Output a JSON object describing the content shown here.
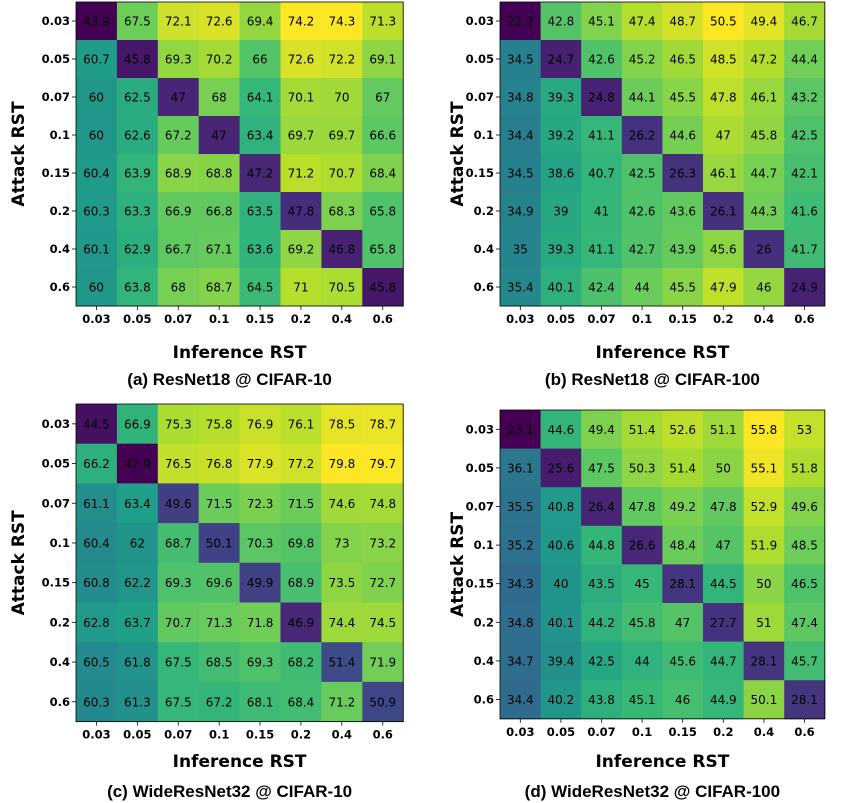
{
  "chart_data": [
    {
      "type": "heatmap",
      "caption": "(a) ResNet18 @ CIFAR-10",
      "xlabel": "Inference RST",
      "ylabel": "Attack RST",
      "x_categories": [
        "0.03",
        "0.05",
        "0.07",
        "0.1",
        "0.15",
        "0.2",
        "0.4",
        "0.6"
      ],
      "y_categories": [
        "0.03",
        "0.05",
        "0.07",
        "0.1",
        "0.15",
        "0.2",
        "0.4",
        "0.6"
      ],
      "colormap": "viridis",
      "values": [
        [
          43.9,
          67.5,
          72.1,
          72.6,
          69.4,
          74.2,
          74.3,
          71.3
        ],
        [
          60.7,
          45.8,
          69.3,
          70.2,
          66.0,
          72.6,
          72.2,
          69.1
        ],
        [
          60.0,
          62.5,
          47.0,
          68.0,
          64.1,
          70.1,
          70.0,
          67.0
        ],
        [
          60.0,
          62.6,
          67.2,
          47.0,
          63.4,
          69.7,
          69.7,
          66.6
        ],
        [
          60.4,
          63.9,
          68.9,
          68.8,
          47.2,
          71.2,
          70.7,
          68.4
        ],
        [
          60.3,
          63.3,
          66.9,
          66.8,
          63.5,
          47.8,
          68.3,
          65.8
        ],
        [
          60.1,
          62.9,
          66.7,
          67.1,
          63.6,
          69.2,
          46.8,
          65.8
        ],
        [
          60.0,
          63.8,
          68.0,
          68.7,
          64.5,
          71.0,
          70.5,
          45.8
        ]
      ]
    },
    {
      "type": "heatmap",
      "caption": "(b) ResNet18 @ CIFAR-100",
      "xlabel": "Inference RST",
      "ylabel": "Attack RST",
      "x_categories": [
        "0.03",
        "0.05",
        "0.07",
        "0.1",
        "0.15",
        "0.2",
        "0.4",
        "0.6"
      ],
      "y_categories": [
        "0.03",
        "0.05",
        "0.07",
        "0.1",
        "0.15",
        "0.2",
        "0.4",
        "0.6"
      ],
      "colormap": "viridis",
      "values": [
        [
          22.2,
          42.8,
          45.1,
          47.4,
          48.7,
          50.5,
          49.4,
          46.7
        ],
        [
          34.5,
          24.7,
          42.6,
          45.2,
          46.5,
          48.5,
          47.2,
          44.4
        ],
        [
          34.8,
          39.3,
          24.8,
          44.1,
          45.5,
          47.8,
          46.1,
          43.2
        ],
        [
          34.4,
          39.2,
          41.1,
          26.2,
          44.6,
          47.0,
          45.8,
          42.5
        ],
        [
          34.5,
          38.6,
          40.7,
          42.5,
          26.3,
          46.1,
          44.7,
          42.1
        ],
        [
          34.9,
          39.0,
          41.0,
          42.6,
          43.6,
          26.1,
          44.3,
          41.6
        ],
        [
          35.0,
          39.3,
          41.1,
          42.7,
          43.9,
          45.6,
          26.0,
          41.7
        ],
        [
          35.4,
          40.1,
          42.4,
          44.0,
          45.5,
          47.9,
          46.0,
          24.9
        ]
      ]
    },
    {
      "type": "heatmap",
      "caption": "(c) WideResNet32 @ CIFAR-10",
      "xlabel": "Inference RST",
      "ylabel": "Attack RST",
      "x_categories": [
        "0.03",
        "0.05",
        "0.07",
        "0.1",
        "0.15",
        "0.2",
        "0.4",
        "0.6"
      ],
      "y_categories": [
        "0.03",
        "0.05",
        "0.07",
        "0.1",
        "0.15",
        "0.2",
        "0.4",
        "0.6"
      ],
      "colormap": "viridis",
      "values": [
        [
          44.5,
          66.9,
          75.3,
          75.8,
          76.9,
          76.1,
          78.5,
          78.7
        ],
        [
          66.2,
          42.9,
          76.5,
          76.8,
          77.9,
          77.2,
          79.8,
          79.7
        ],
        [
          61.1,
          63.4,
          49.6,
          71.5,
          72.3,
          71.5,
          74.6,
          74.8
        ],
        [
          60.4,
          62.0,
          68.7,
          50.1,
          70.3,
          69.8,
          73.0,
          73.2
        ],
        [
          60.8,
          62.2,
          69.3,
          69.6,
          49.9,
          68.9,
          73.5,
          72.7
        ],
        [
          62.8,
          63.7,
          70.7,
          71.3,
          71.8,
          46.9,
          74.4,
          74.5
        ],
        [
          60.5,
          61.8,
          67.5,
          68.5,
          69.3,
          68.2,
          51.4,
          71.9
        ],
        [
          60.3,
          61.3,
          67.5,
          67.2,
          68.1,
          68.4,
          71.2,
          50.9
        ]
      ]
    },
    {
      "type": "heatmap",
      "caption": "(d) WideResNet32 @ CIFAR-100",
      "xlabel": "Inference RST",
      "ylabel": "Attack RST",
      "x_categories": [
        "0.03",
        "0.05",
        "0.07",
        "0.1",
        "0.15",
        "0.2",
        "0.4",
        "0.6"
      ],
      "y_categories": [
        "0.03",
        "0.05",
        "0.07",
        "0.1",
        "0.15",
        "0.2",
        "0.4",
        "0.6"
      ],
      "colormap": "viridis",
      "values": [
        [
          23.1,
          44.6,
          49.4,
          51.4,
          52.6,
          51.1,
          55.8,
          53.0
        ],
        [
          36.1,
          25.6,
          47.5,
          50.3,
          51.4,
          50.0,
          55.1,
          51.8
        ],
        [
          35.5,
          40.8,
          26.4,
          47.8,
          49.2,
          47.8,
          52.9,
          49.6
        ],
        [
          35.2,
          40.6,
          44.8,
          26.6,
          48.4,
          47.0,
          51.9,
          48.5
        ],
        [
          34.3,
          40.0,
          43.5,
          45.0,
          28.1,
          44.5,
          50.0,
          46.5
        ],
        [
          34.8,
          40.1,
          44.2,
          45.8,
          47.0,
          27.7,
          51.0,
          47.4
        ],
        [
          34.7,
          39.4,
          42.5,
          44.0,
          45.6,
          44.7,
          28.1,
          45.7
        ],
        [
          34.4,
          40.2,
          43.8,
          45.1,
          46.0,
          44.9,
          50.1,
          28.1
        ]
      ]
    }
  ]
}
